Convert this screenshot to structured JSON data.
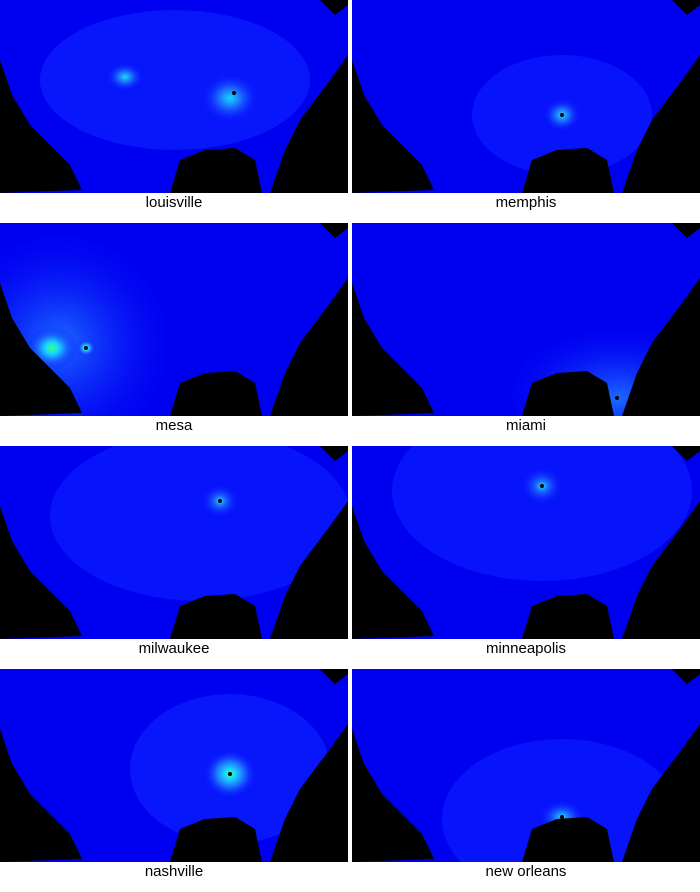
{
  "colors": {
    "background": "#0000f0",
    "land_mask": "#000000",
    "caption_background": "#ffffff",
    "caption_text": "#000000",
    "heat_low": "#0a1cff",
    "heat_mid": "#1b6bff",
    "heat_high": "#18d8ff",
    "hotspot": "#3cff7a",
    "marker": "#000000"
  },
  "panels": [
    {
      "label": "louisville",
      "peak": "high"
    },
    {
      "label": "memphis",
      "peak": "medium"
    },
    {
      "label": "mesa",
      "peak": "high"
    },
    {
      "label": "miami",
      "peak": "low"
    },
    {
      "label": "milwaukee",
      "peak": "medium"
    },
    {
      "label": "minneapolis",
      "peak": "medium"
    },
    {
      "label": "nashville",
      "peak": "high"
    },
    {
      "label": "new orleans",
      "peak": "medium"
    }
  ]
}
